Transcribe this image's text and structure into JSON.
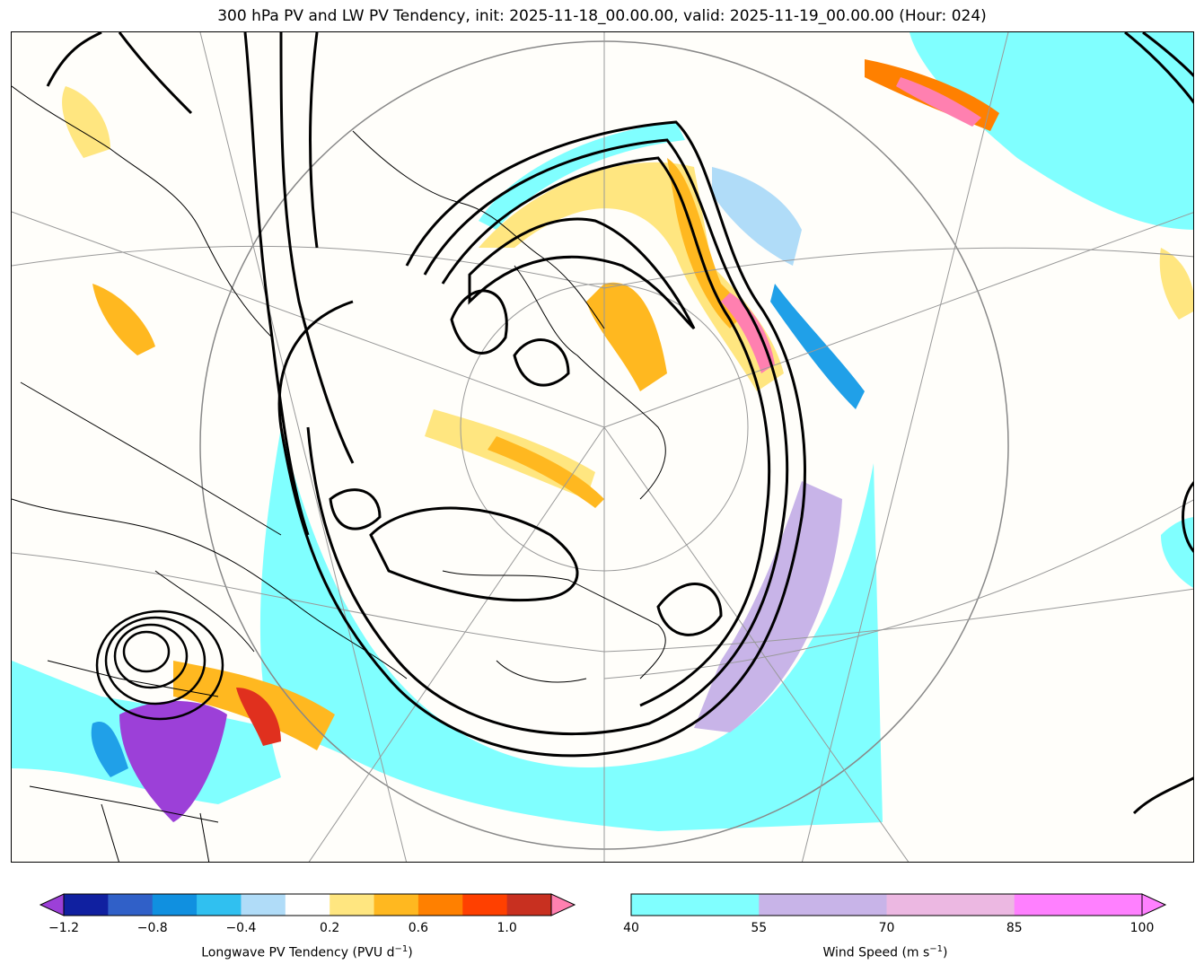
{
  "title": "300 hPa PV and LW PV Tendency, init: 2025-11-18_00.00.00, valid: 2025-11-19_00.00.00 (Hour: 024)",
  "colors": {
    "wind_40": "#80ffff",
    "wind_55": "#c8b4e8",
    "wind_70": "#ecb8e2",
    "wind_85": "#ff80ff",
    "pv_pos_light": "#ffe680",
    "pv_pos_mid": "#ffb820",
    "pv_pos_strong": "#ff8000",
    "pv_pos_red": "#e0301e",
    "pv_neg_light": "#b0dcf8",
    "pv_neg_mid": "#20a0e8",
    "pv_neg_dark": "#2040b0",
    "pv_extreme_low": "#9c40d8",
    "pv_extreme_high": "#ff80b0"
  },
  "pv_colorbar": {
    "label": "Longwave PV Tendency (PVU d",
    "label_sup": "−1",
    "label_end": ")",
    "ticks": [
      "−1.2",
      "−0.8",
      "−0.4",
      "0.2",
      "0.6",
      "1.0"
    ],
    "colors": [
      "#9c40d8",
      "#1020a0",
      "#3060c8",
      "#1090e0",
      "#30c0f0",
      "#b0dcf8",
      "#ffffff",
      "#ffe680",
      "#ffb820",
      "#ff8000",
      "#ff4000",
      "#c83020",
      "#ff80b0"
    ]
  },
  "wind_colorbar": {
    "label": "Wind Speed (m s",
    "label_sup": "−1",
    "label_end": ")",
    "ticks": [
      "40",
      "55",
      "70",
      "85",
      "100"
    ],
    "colors": [
      "#80ffff",
      "#c8b4e8",
      "#ecb8e2",
      "#ff80ff"
    ]
  }
}
